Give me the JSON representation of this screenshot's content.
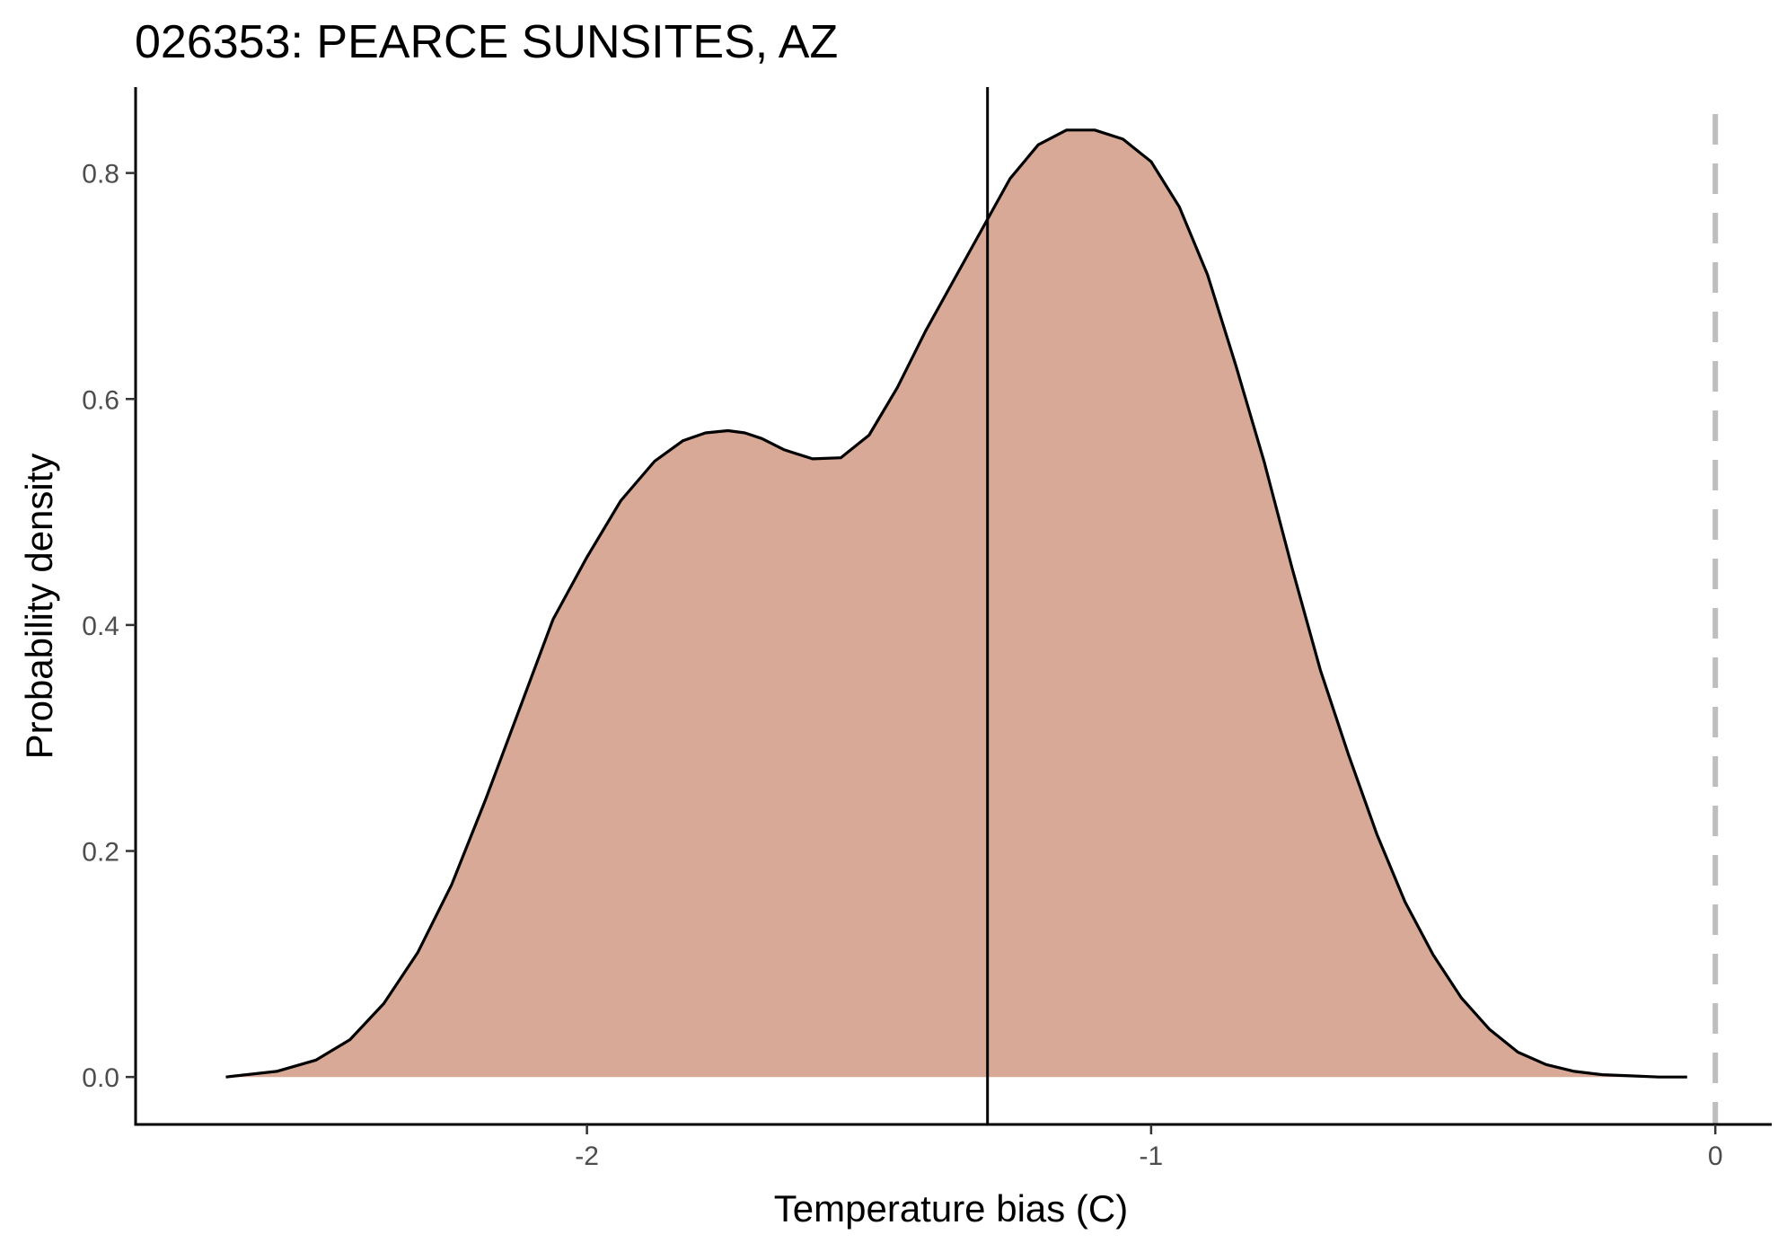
{
  "chart_data": {
    "type": "area",
    "title": "026353: PEARCE SUNSITES, AZ",
    "xlabel": "Temperature bias (C)",
    "ylabel": "Probability density",
    "xlim": [
      -2.8,
      0.1
    ],
    "ylim": [
      -0.042,
      0.876
    ],
    "x_ticks": [
      -2,
      -1,
      0
    ],
    "x_tick_labels": [
      "-2",
      "-1",
      "0"
    ],
    "y_ticks": [
      0.0,
      0.2,
      0.4,
      0.6,
      0.8
    ],
    "y_tick_labels": [
      "0.0",
      "0.2",
      "0.4",
      "0.6",
      "0.8"
    ],
    "grid": false,
    "fill_color": "#d9a998",
    "line_color": "#000000",
    "reference_line_color": "#bebebe",
    "series": [
      {
        "x": [
          -2.64,
          -2.55,
          -2.48,
          -2.42,
          -2.36,
          -2.3,
          -2.24,
          -2.18,
          -2.12,
          -2.06,
          -2.0,
          -1.94,
          -1.88,
          -1.83,
          -1.79,
          -1.75,
          -1.72,
          -1.69,
          -1.65,
          -1.6,
          -1.55,
          -1.5,
          -1.45,
          -1.4,
          -1.35,
          -1.3,
          -1.25,
          -1.2,
          -1.15,
          -1.1,
          -1.05,
          -1.0,
          -0.95,
          -0.9,
          -0.85,
          -0.8,
          -0.75,
          -0.7,
          -0.65,
          -0.6,
          -0.55,
          -0.5,
          -0.45,
          -0.4,
          -0.35,
          -0.3,
          -0.25,
          -0.2,
          -0.15,
          -0.1,
          -0.05
        ],
        "y": [
          0.0,
          0.005,
          0.015,
          0.033,
          0.065,
          0.11,
          0.17,
          0.245,
          0.325,
          0.405,
          0.46,
          0.51,
          0.545,
          0.563,
          0.57,
          0.572,
          0.57,
          0.565,
          0.555,
          0.547,
          0.548,
          0.568,
          0.61,
          0.66,
          0.705,
          0.75,
          0.795,
          0.825,
          0.838,
          0.838,
          0.83,
          0.81,
          0.77,
          0.71,
          0.63,
          0.545,
          0.45,
          0.36,
          0.285,
          0.215,
          0.155,
          0.108,
          0.07,
          0.042,
          0.022,
          0.011,
          0.005,
          0.002,
          0.001,
          0.0,
          0.0
        ]
      }
    ],
    "vertical_lines": [
      {
        "x": -1.29,
        "style": "solid"
      },
      {
        "x": 0.0,
        "style": "dashed"
      }
    ]
  }
}
